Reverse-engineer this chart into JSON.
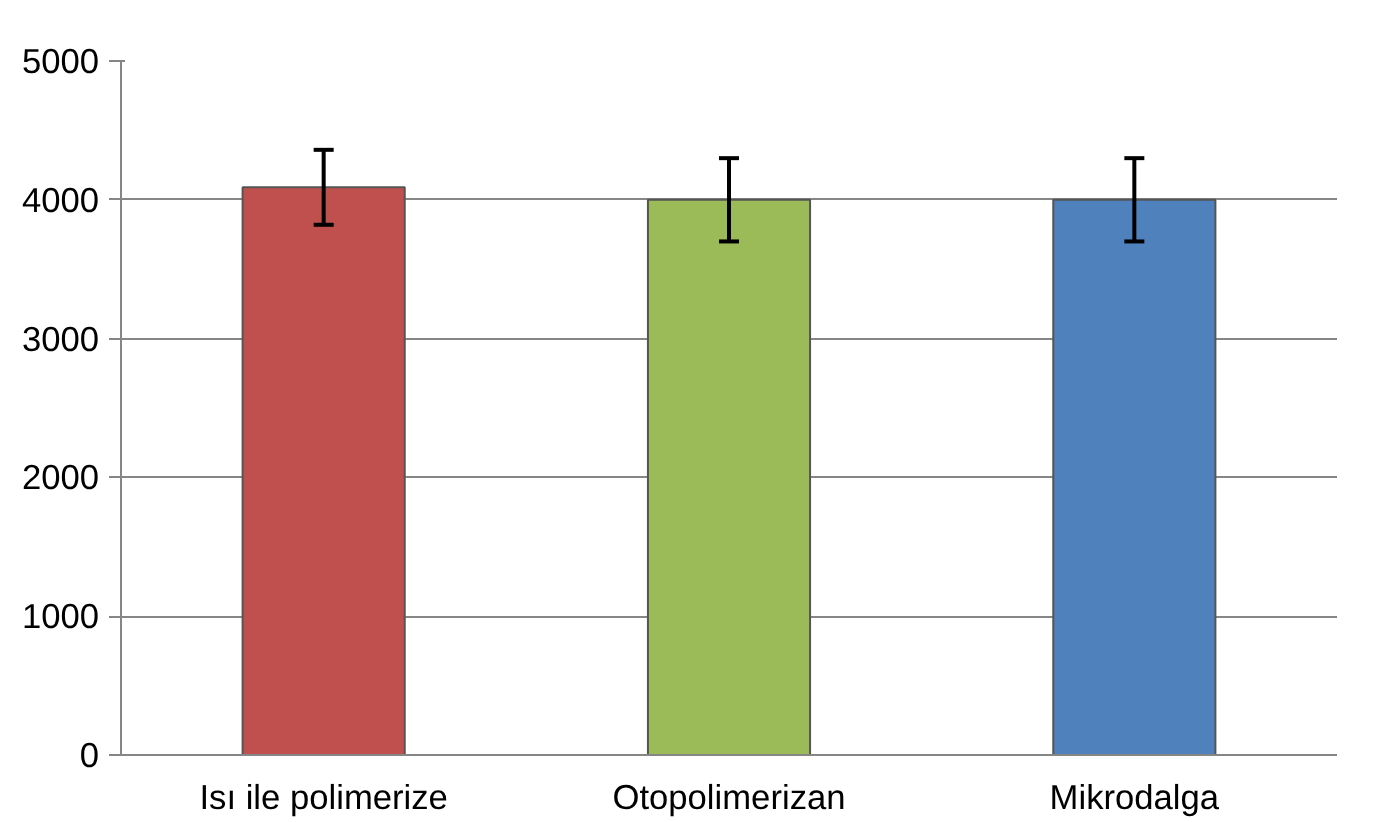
{
  "chart_data": {
    "type": "bar",
    "categories": [
      "Isı ile polimerize",
      "Otopolimerizan",
      "Mikrodalga"
    ],
    "values": [
      4090,
      4000,
      4000
    ],
    "colors": [
      "#c0504d",
      "#9bbb59",
      "#4f81bd"
    ],
    "errors": [
      270,
      300,
      300
    ],
    "ylim": [
      0,
      5000
    ],
    "yticks": [
      0,
      1000,
      2000,
      3000,
      4000,
      5000
    ],
    "grid": "y"
  }
}
